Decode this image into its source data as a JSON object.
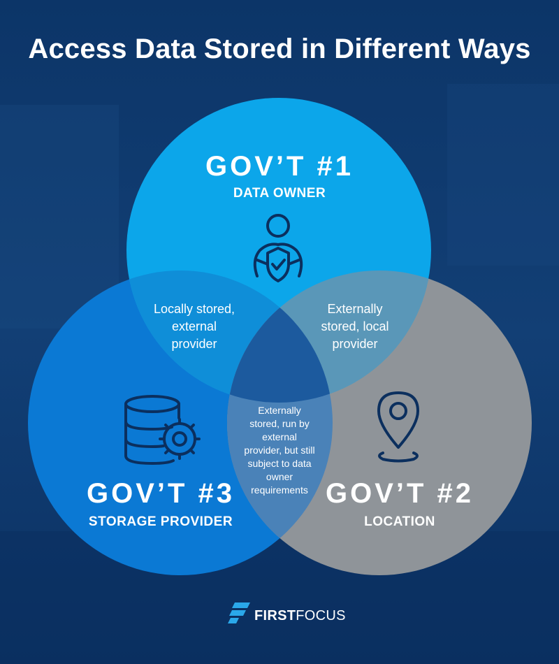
{
  "title": "Access Data Stored in Different Ways",
  "circles": [
    {
      "id": "gov1",
      "heading": "GOV’T #1",
      "role": "DATA OWNER",
      "icon": "person-shield-check-icon",
      "color": "#0ca6ea"
    },
    {
      "id": "gov2",
      "heading": "GOV’T #2",
      "role": "LOCATION",
      "icon": "map-pin-icon",
      "color": "#8f9499"
    },
    {
      "id": "gov3",
      "heading": "GOV’T #3",
      "role": "STORAGE PROVIDER",
      "icon": "database-gear-icon",
      "color": "#0b79d4"
    }
  ],
  "overlaps": {
    "gov1_gov3": [
      "Locally stored,",
      "external",
      "provider"
    ],
    "gov1_gov2": [
      "Externally",
      "stored, local",
      "provider"
    ],
    "all_three": [
      "Externally",
      "stored, run by",
      "external",
      "provider, but still",
      "subject to data",
      "owner",
      "requirements"
    ]
  },
  "brand": {
    "first": "FIRST",
    "second": "FOCUS",
    "icon": "firstfocus-logo-icon"
  }
}
